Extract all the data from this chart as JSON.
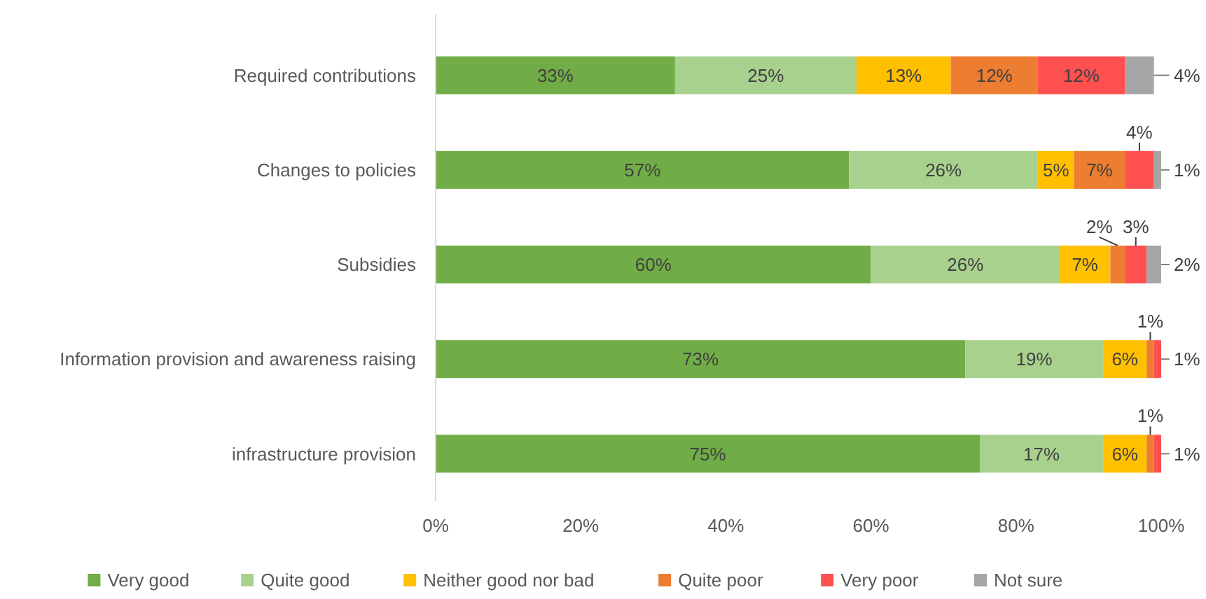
{
  "chart_data": {
    "type": "bar",
    "orientation": "horizontal",
    "stacked": true,
    "legend": "bottom",
    "grid": false,
    "categories": [
      "Required contributions",
      "Changes to policies",
      "Subsidies",
      "Information provision and awareness raising",
      "infrastructure provision"
    ],
    "xlim": [
      0,
      100
    ],
    "xticks": [
      {
        "value": 0,
        "label": "0%"
      },
      {
        "value": 20,
        "label": "20%"
      },
      {
        "value": 40,
        "label": "40%"
      },
      {
        "value": 60,
        "label": "60%"
      },
      {
        "value": 80,
        "label": "80%"
      },
      {
        "value": 100,
        "label": "100%"
      }
    ],
    "series": [
      {
        "name": "Very good",
        "color": "#70ad47",
        "values": [
          33,
          57,
          60,
          73,
          75
        ],
        "value_labels": [
          "33%",
          "57%",
          "60%",
          "73%",
          "75%"
        ]
      },
      {
        "name": "Quite good",
        "color": "#a9d18e",
        "values": [
          25,
          26,
          26,
          19,
          17
        ],
        "value_labels": [
          "25%",
          "26%",
          "26%",
          "19%",
          "17%"
        ]
      },
      {
        "name": "Neither good nor bad",
        "color": "#ffc000",
        "values": [
          13,
          5,
          7,
          6,
          6
        ],
        "value_labels": [
          "13%",
          "5%",
          "7%",
          "6%",
          "6%"
        ]
      },
      {
        "name": "Quite poor",
        "color": "#ed7d31",
        "values": [
          12,
          7,
          2,
          1,
          1
        ],
        "value_labels": [
          "12%",
          "7%",
          "2%",
          "1%",
          "1%"
        ]
      },
      {
        "name": "Very poor",
        "color": "#ff5050",
        "values": [
          12,
          4,
          3,
          1,
          1
        ],
        "value_labels": [
          "12%",
          "4%",
          "3%",
          "1%",
          "1%"
        ]
      },
      {
        "name": "Not sure",
        "color": "#a5a5a5",
        "values": [
          4,
          1,
          2,
          null,
          null
        ],
        "value_labels": [
          "4%",
          "1%",
          "2%",
          null,
          null
        ]
      }
    ]
  }
}
